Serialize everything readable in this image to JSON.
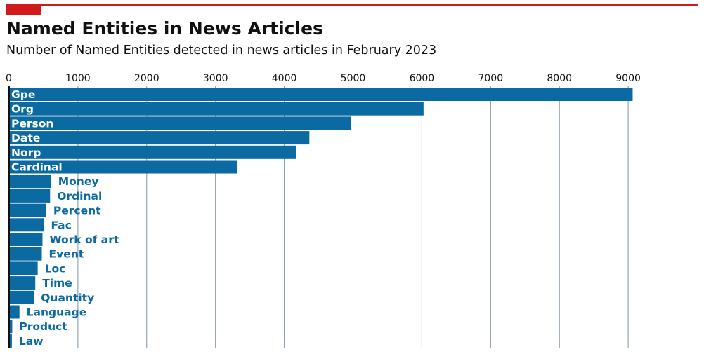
{
  "title": "Named Entities in News Articles",
  "subtitle": "Number of Named Entities detected in news articles in February 2023",
  "colors": {
    "bar": "#0b6aa2",
    "accent": "#d11a1a",
    "label_inside": "#ffffff",
    "label_outside": "#0b6aa2",
    "grid": "#7f93a3"
  },
  "chart_data": {
    "type": "bar",
    "orientation": "horizontal",
    "categories": [
      "Gpe",
      "Org",
      "Person",
      "Date",
      "Norp",
      "Cardinal",
      "Money",
      "Ordinal",
      "Percent",
      "Fac",
      "Work of art",
      "Event",
      "Loc",
      "Time",
      "Quantity",
      "Language",
      "Product",
      "Law"
    ],
    "values": [
      9065,
      6025,
      4965,
      4365,
      4175,
      3320,
      610,
      595,
      540,
      505,
      485,
      475,
      415,
      380,
      360,
      150,
      45,
      40
    ],
    "xticks": [
      "0",
      "1000",
      "2000",
      "3000",
      "4000",
      "5000",
      "6000",
      "7000",
      "8000",
      "9000"
    ],
    "xlim": [
      0,
      9200
    ],
    "axis_position": "top",
    "grid": "vertical",
    "legend": "none"
  }
}
